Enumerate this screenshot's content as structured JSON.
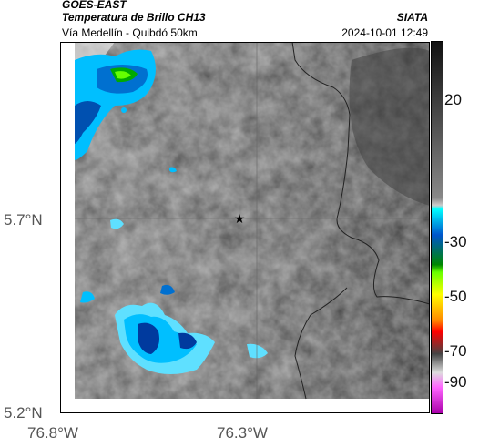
{
  "header": {
    "product": "GOES-EAST",
    "title": "Temperatura de Brillo CH13",
    "route": "Vía Medellín - Quibdó 50km",
    "agency": "SIATA",
    "datetime": "2024-10-01 12:49"
  },
  "axes": {
    "lat_labels": [
      "5.7°N",
      "5.2°N"
    ],
    "lon_labels": [
      "76.8°W",
      "76.3°W"
    ]
  },
  "colorbar": {
    "ticks": [
      "20",
      "-30",
      "-50",
      "-70",
      "-90"
    ],
    "stops": [
      "#111111",
      "#888888",
      "#cccccc",
      "#00ffff",
      "#0055cc",
      "#008800",
      "#66ff00",
      "#ffff00",
      "#ff8800",
      "#ff0000",
      "#444444",
      "#dddddd",
      "#ff66ff",
      "#aa00aa"
    ]
  },
  "map": {
    "marker_icon": "star-icon",
    "colors": {
      "cold_core": "#003a9e",
      "cold": "#00bfff",
      "cold_edge": "#5fe0ff",
      "green_core": "#00aa00",
      "border": "#222222"
    }
  }
}
